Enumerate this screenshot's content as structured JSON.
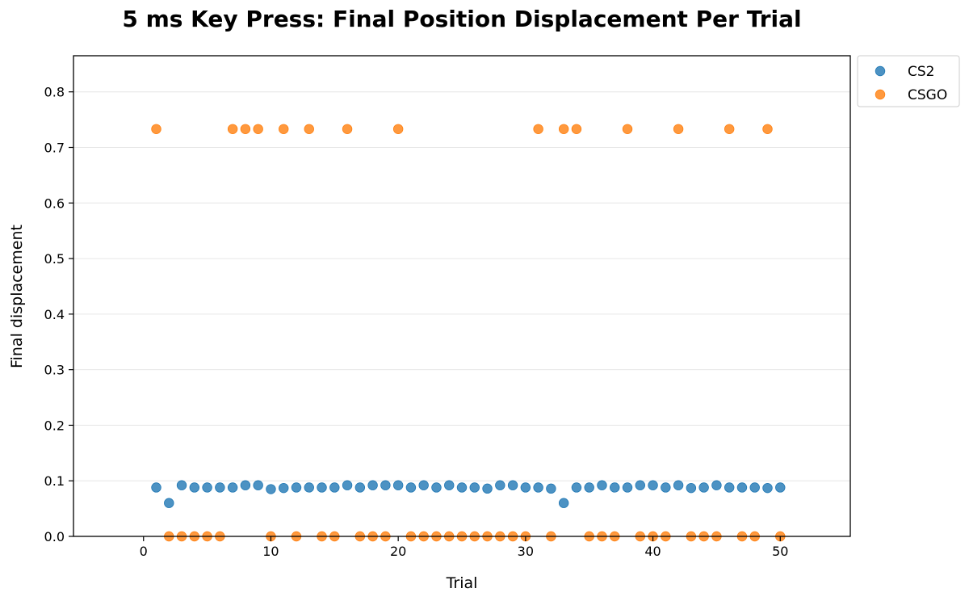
{
  "chart_data": {
    "type": "scatter",
    "title": "5 ms Key Press: Final Position Displacement Per Trial",
    "xlabel": "Trial",
    "ylabel": "Final displacement",
    "xlim": [
      -5.5,
      55.5
    ],
    "ylim": [
      0,
      0.865
    ],
    "xticks": [
      0,
      10,
      20,
      30,
      40,
      50
    ],
    "yticks": [
      0.0,
      0.1,
      0.2,
      0.3,
      0.4,
      0.5,
      0.6,
      0.7,
      0.8
    ],
    "ytick_labels": [
      "0.0",
      "0.1",
      "0.2",
      "0.3",
      "0.4",
      "0.5",
      "0.6",
      "0.7",
      "0.8"
    ],
    "grid": "horizontal",
    "legend_position": "outside-top-right",
    "series": [
      {
        "name": "CS2",
        "color": "#1f77b4",
        "x": [
          1,
          2,
          3,
          4,
          5,
          6,
          7,
          8,
          9,
          10,
          11,
          12,
          13,
          14,
          15,
          16,
          17,
          18,
          19,
          20,
          21,
          22,
          23,
          24,
          25,
          26,
          27,
          28,
          29,
          30,
          31,
          32,
          33,
          34,
          35,
          36,
          37,
          38,
          39,
          40,
          41,
          42,
          43,
          44,
          45,
          46,
          47,
          48,
          49,
          50
        ],
        "y": [
          0.088,
          0.06,
          0.092,
          0.088,
          0.088,
          0.088,
          0.088,
          0.092,
          0.092,
          0.085,
          0.087,
          0.088,
          0.088,
          0.088,
          0.088,
          0.092,
          0.088,
          0.092,
          0.092,
          0.092,
          0.088,
          0.092,
          0.088,
          0.092,
          0.088,
          0.088,
          0.086,
          0.092,
          0.092,
          0.088,
          0.088,
          0.086,
          0.06,
          0.088,
          0.088,
          0.092,
          0.088,
          0.088,
          0.092,
          0.092,
          0.088,
          0.092,
          0.087,
          0.088,
          0.092,
          0.088,
          0.088,
          0.088,
          0.087,
          0.088
        ]
      },
      {
        "name": "CSGO",
        "color": "#ff7f0e",
        "x": [
          1,
          2,
          3,
          4,
          5,
          6,
          7,
          8,
          9,
          10,
          11,
          12,
          13,
          14,
          15,
          16,
          17,
          18,
          19,
          20,
          21,
          22,
          23,
          24,
          25,
          26,
          27,
          28,
          29,
          30,
          31,
          32,
          33,
          34,
          35,
          36,
          37,
          38,
          39,
          40,
          41,
          42,
          43,
          44,
          45,
          46,
          47,
          48,
          49,
          50
        ],
        "y": [
          0.733,
          0,
          0,
          0,
          0,
          0,
          0.733,
          0.733,
          0.733,
          0,
          0.733,
          0,
          0.733,
          0,
          0,
          0.733,
          0,
          0,
          0,
          0.733,
          0,
          0,
          0,
          0,
          0,
          0,
          0,
          0,
          0,
          0,
          0.733,
          0,
          0.733,
          0.733,
          0,
          0,
          0,
          0.733,
          0,
          0,
          0,
          0.733,
          0,
          0,
          0,
          0.733,
          0,
          0,
          0.733,
          0
        ]
      }
    ]
  }
}
